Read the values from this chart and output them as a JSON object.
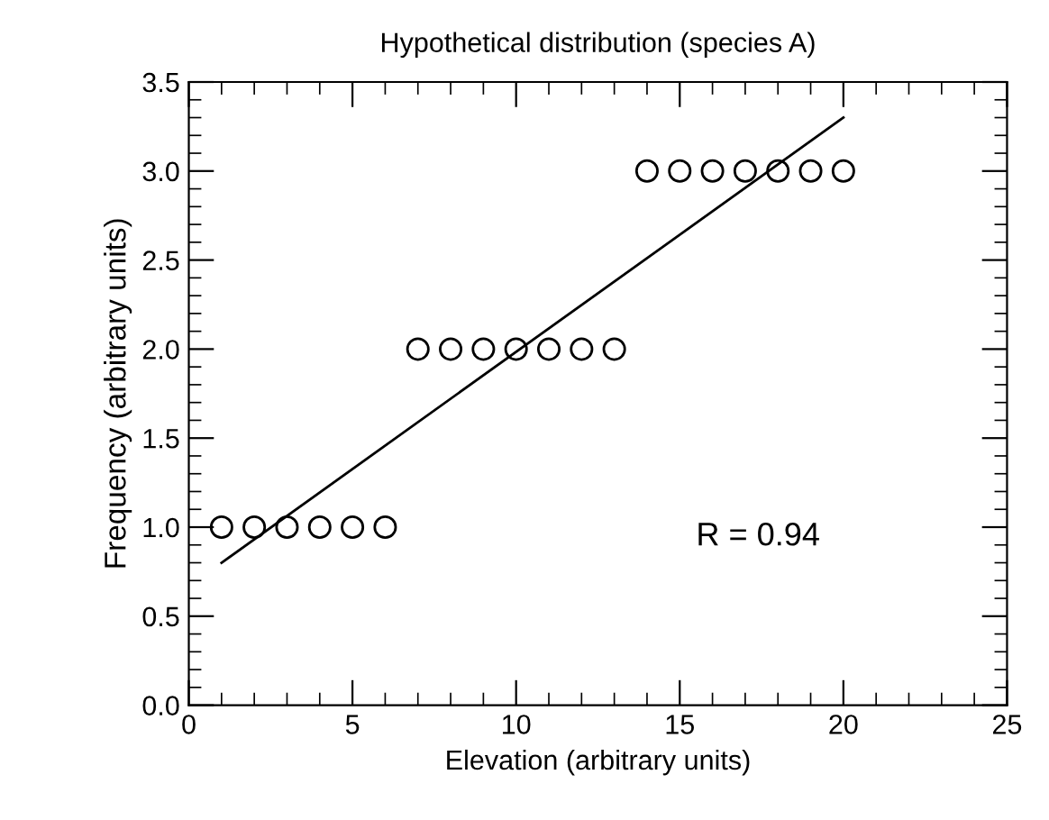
{
  "chart_data": {
    "type": "scatter",
    "title": "Hypothetical distribution (species A)",
    "xlabel": "Elevation (arbitrary units)",
    "ylabel": "Frequency (arbitrary units)",
    "series": [
      {
        "color": "#000000",
        "marker": "circle",
        "x": [
          1,
          2,
          3,
          4,
          5,
          6,
          7,
          8,
          9,
          10,
          11,
          12,
          13,
          14,
          15,
          16,
          17,
          18,
          19,
          20
        ],
        "values": [
          1,
          1,
          1,
          1,
          1,
          1,
          2,
          2,
          2,
          2,
          2,
          2,
          2,
          3,
          3,
          3,
          3,
          3,
          3,
          3
        ]
      },
      {
        "type": "line",
        "color": "#000000",
        "marker": "none",
        "line_style": "solid",
        "x": [
          1,
          20
        ],
        "values": [
          0.8,
          3.3
        ]
      }
    ],
    "xlim": [
      0,
      25
    ],
    "xticks": [
      0,
      5,
      10,
      15,
      20,
      25
    ],
    "ylim": [
      0,
      3.5
    ],
    "yticks": [
      {
        "value": 0,
        "label": "0.0"
      },
      {
        "value": 0.5,
        "label": "0.5"
      },
      {
        "value": 1,
        "label": "1.0"
      },
      {
        "value": 1.5,
        "label": "1.5"
      },
      {
        "value": 2,
        "label": "2.0"
      },
      {
        "value": 2.5,
        "label": "2.5"
      },
      {
        "value": 3,
        "label": "3.0"
      },
      {
        "value": 3.5,
        "label": "3.5"
      }
    ],
    "grid": false,
    "annotations": [
      "R = 0.94"
    ]
  }
}
